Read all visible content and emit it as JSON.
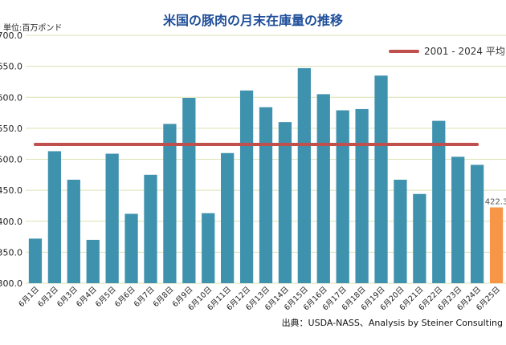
{
  "chart_data": {
    "type": "bar",
    "title": "米国の豚肉の月末在庫量の推移",
    "unit_label": "単位:百万ポンド",
    "source": "出典：USDA-NASS、Analysis by Steiner Consulting",
    "categories": [
      "6月1日",
      "6月2日",
      "6月3日",
      "6月4日",
      "6月5日",
      "6月6日",
      "6月7日",
      "6月8日",
      "6月9日",
      "6月10日",
      "6月11日",
      "6月12日",
      "6月13日",
      "6月14日",
      "6月15日",
      "6月16日",
      "6月17日",
      "6月18日",
      "6月19日",
      "6月20日",
      "6月21日",
      "6月22日",
      "6月23日",
      "6月24日",
      "6月25日"
    ],
    "values": [
      372,
      513,
      467,
      370,
      509,
      412,
      475,
      557,
      599,
      413,
      510,
      611,
      584,
      560,
      647,
      605,
      579,
      581,
      635,
      467,
      444,
      562,
      504,
      491,
      422.3
    ],
    "highlight_index": 24,
    "highlight_label": "422.3",
    "average": {
      "name": "2001 - 2024 平均",
      "value": 524
    },
    "ylim": [
      300,
      700
    ],
    "yticks": [
      "300.0",
      "350.0",
      "400.0",
      "450.0",
      "500.0",
      "550.0",
      "600.0",
      "650.0",
      "700.0"
    ],
    "grid": true,
    "legend_position": "top-right",
    "colors": {
      "bar": "#3f92ae",
      "highlight": "#f79646",
      "average": "#c0504d",
      "grid": "#d9e2b3",
      "title": "#1f4e9a"
    }
  }
}
